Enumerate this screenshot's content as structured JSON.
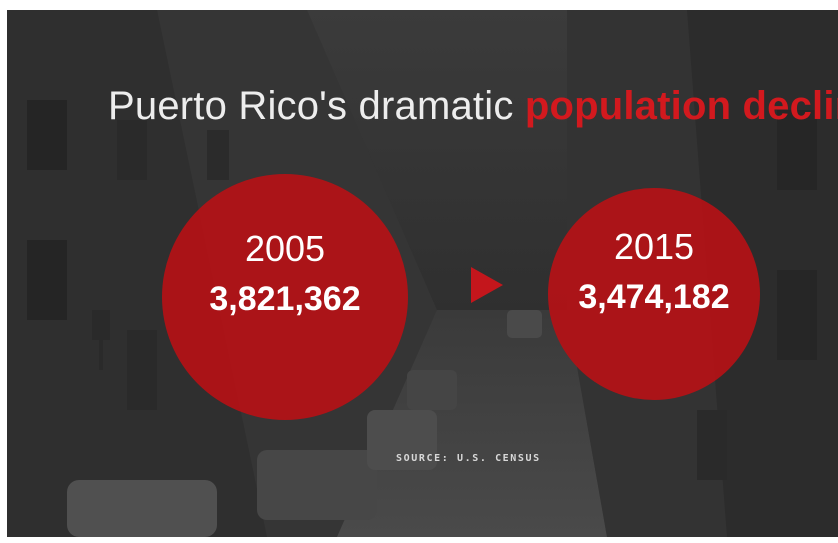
{
  "title": {
    "prefix": "Puerto Rico's dramatic ",
    "highlight": "population decline"
  },
  "stats": [
    {
      "year": "2005",
      "population": "3,821,362"
    },
    {
      "year": "2015",
      "population": "3,474,182"
    }
  ],
  "source": "SOURCE: U.S. CENSUS",
  "colors": {
    "accent": "#c4161c",
    "title_text": "#ededed",
    "background": "#2e2e2e"
  },
  "icons": {
    "arrow": "play-arrow-icon"
  }
}
